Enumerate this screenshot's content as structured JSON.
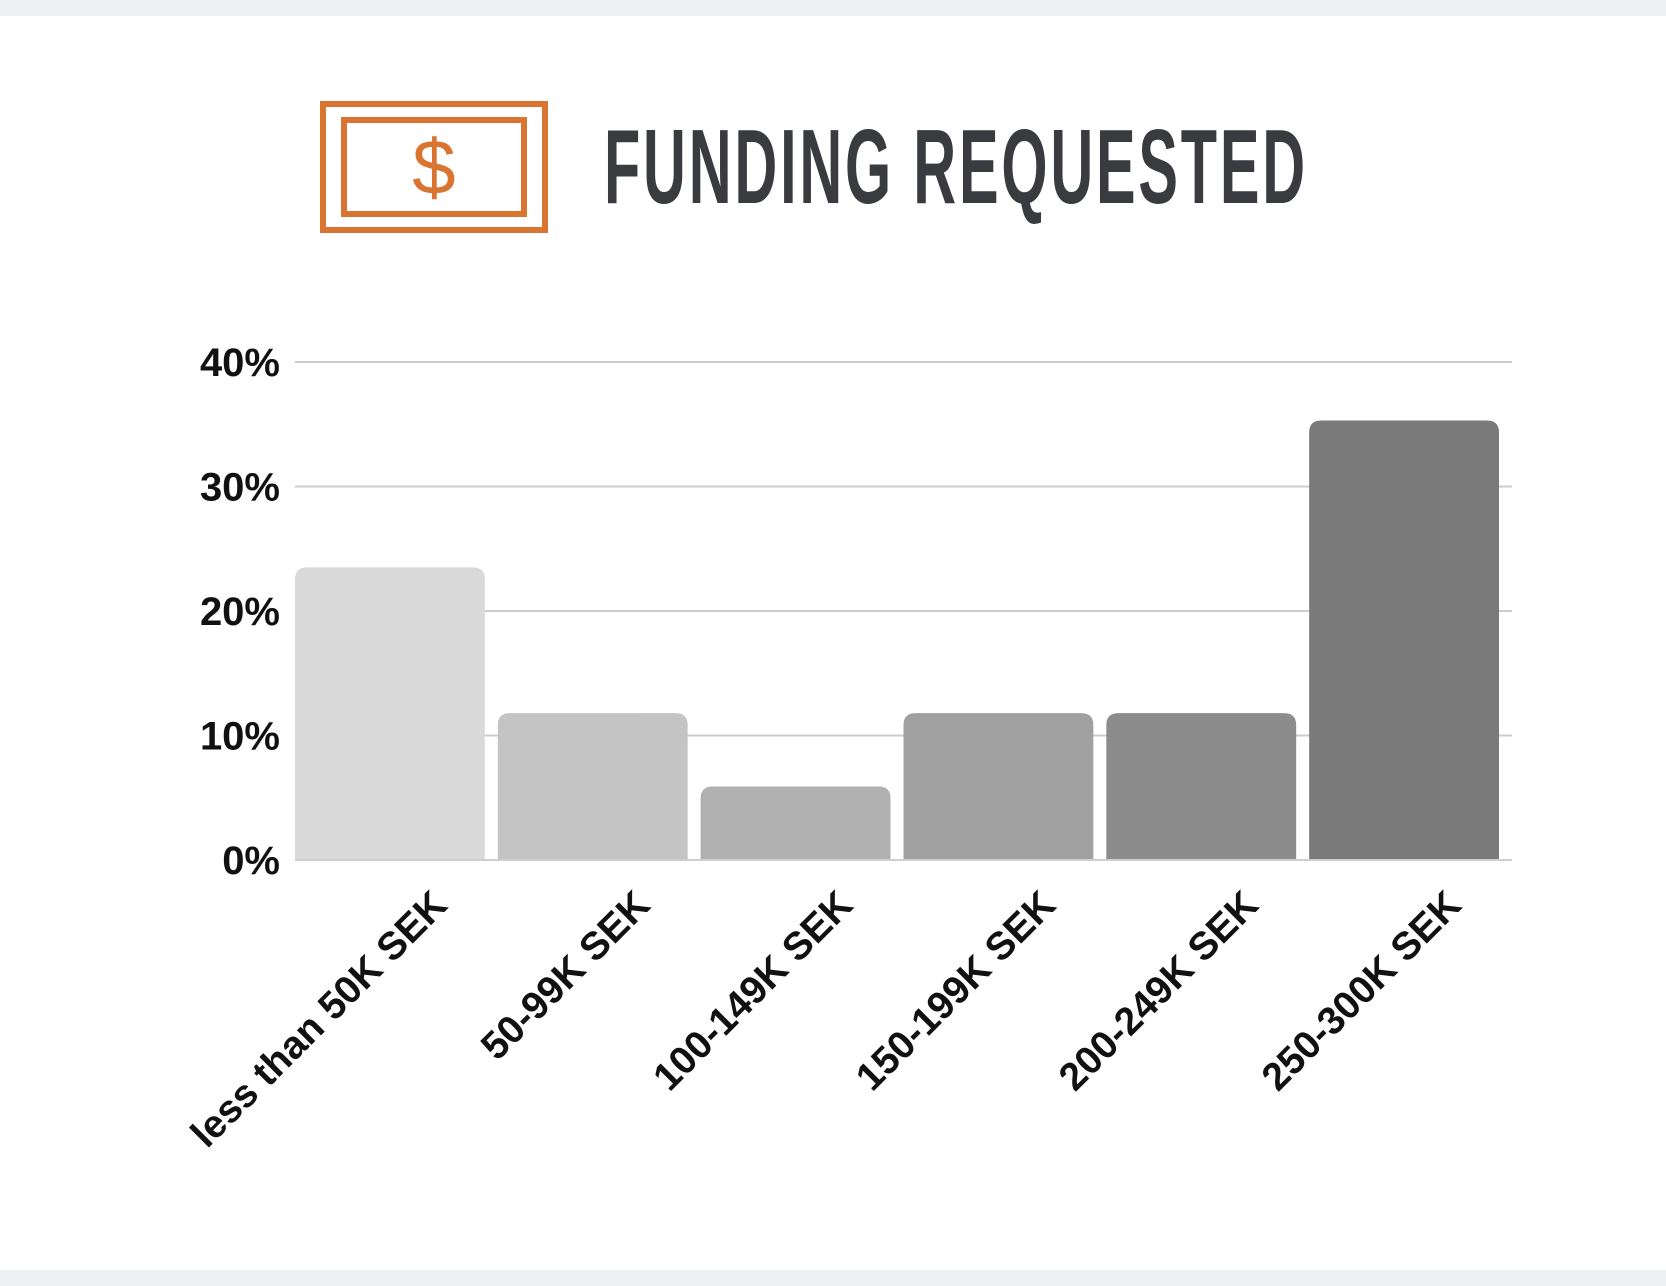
{
  "header": {
    "icon": "dollar-bill-icon",
    "icon_glyph": "$",
    "accent_color": "#d97431"
  },
  "chart_data": {
    "type": "bar",
    "title": "FUNDING REQUESTED",
    "xlabel": "",
    "ylabel": "",
    "categories": [
      "less than 50K SEK",
      "50-99K SEK",
      "100-149K SEK",
      "150-199K SEK",
      "200-249K SEK",
      "250-300K SEK"
    ],
    "values": [
      23.5,
      11.8,
      5.9,
      11.8,
      11.8,
      35.3
    ],
    "unit": "%",
    "ylim": [
      0,
      40
    ],
    "yticks": [
      0,
      10,
      20,
      30,
      40
    ],
    "ytick_labels": [
      "0%",
      "10%",
      "20%",
      "30%",
      "40%"
    ],
    "grid": true,
    "legend": "none",
    "bar_colors": [
      "#d9d9d9",
      "#c4c4c4",
      "#b0b0b0",
      "#a0a0a0",
      "#8c8c8c",
      "#7a7a7a"
    ],
    "grid_color": "#cccccc"
  }
}
